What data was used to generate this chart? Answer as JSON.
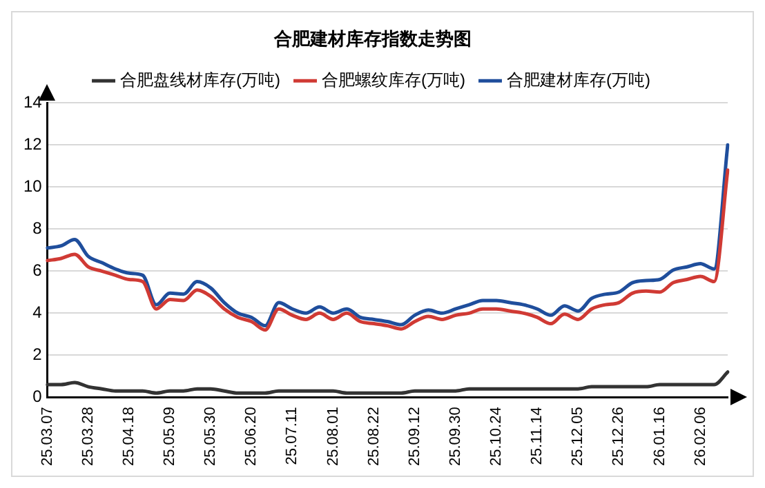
{
  "chart_data": {
    "type": "line",
    "title": "合肥建材库存指数走势图",
    "categories": [
      "25.03.07",
      null,
      null,
      "25.03.28",
      null,
      null,
      "25.04.18",
      null,
      null,
      "25.05.09",
      null,
      null,
      "25.05.30",
      null,
      null,
      "25.06.20",
      null,
      null,
      "25.07.11",
      null,
      null,
      "25.08.01",
      null,
      null,
      "25.08.22",
      null,
      null,
      "25.09.12",
      null,
      null,
      "25.09.30",
      null,
      null,
      "25.10.24",
      null,
      null,
      "25.11.14",
      null,
      null,
      "25.12.05",
      null,
      null,
      "25.12.26",
      null,
      null,
      "26.01.16",
      null,
      null,
      "26.02.06",
      null,
      null
    ],
    "series": [
      {
        "name": "合肥盘线材库存(万吨)",
        "color": "#333333",
        "values": [
          0.6,
          0.6,
          0.7,
          0.5,
          0.4,
          0.3,
          0.3,
          0.3,
          0.2,
          0.3,
          0.3,
          0.4,
          0.4,
          0.3,
          0.2,
          0.2,
          0.2,
          0.3,
          0.3,
          0.3,
          0.3,
          0.3,
          0.2,
          0.2,
          0.2,
          0.2,
          0.2,
          0.3,
          0.3,
          0.3,
          0.3,
          0.4,
          0.4,
          0.4,
          0.4,
          0.4,
          0.4,
          0.4,
          0.4,
          0.4,
          0.5,
          0.5,
          0.5,
          0.5,
          0.5,
          0.6,
          0.6,
          0.6,
          0.6,
          0.6,
          1.2
        ]
      },
      {
        "name": "合肥螺纹库存(万吨)",
        "color": "#d03a34",
        "values": [
          6.5,
          6.6,
          6.8,
          6.2,
          6.0,
          5.8,
          5.6,
          5.5,
          4.2,
          4.65,
          4.6,
          5.1,
          4.8,
          4.2,
          3.8,
          3.6,
          3.2,
          4.2,
          3.9,
          3.7,
          4.0,
          3.7,
          4.0,
          3.6,
          3.5,
          3.4,
          3.25,
          3.6,
          3.85,
          3.7,
          3.9,
          4.0,
          4.2,
          4.2,
          4.1,
          4.0,
          3.8,
          3.5,
          3.95,
          3.7,
          4.2,
          4.4,
          4.5,
          4.95,
          5.05,
          5.0,
          5.45,
          5.6,
          5.75,
          5.5,
          10.8
        ]
      },
      {
        "name": "合肥建材库存(万吨)",
        "color": "#1f4e9c",
        "values": [
          7.1,
          7.2,
          7.5,
          6.7,
          6.4,
          6.1,
          5.9,
          5.8,
          4.4,
          4.95,
          4.9,
          5.5,
          5.2,
          4.5,
          4.0,
          3.8,
          3.4,
          4.5,
          4.2,
          4.0,
          4.3,
          4.0,
          4.2,
          3.8,
          3.7,
          3.6,
          3.45,
          3.9,
          4.15,
          4.0,
          4.2,
          4.4,
          4.6,
          4.6,
          4.5,
          4.4,
          4.2,
          3.9,
          4.35,
          4.1,
          4.7,
          4.9,
          5.0,
          5.45,
          5.55,
          5.6,
          6.05,
          6.2,
          6.35,
          6.1,
          12.0
        ]
      }
    ],
    "ylim": [
      0,
      14
    ],
    "yticks": [
      0,
      2,
      4,
      6,
      8,
      10,
      12,
      14
    ],
    "grid": "y",
    "legend": "top",
    "marker": "none",
    "line_style": "solid"
  }
}
